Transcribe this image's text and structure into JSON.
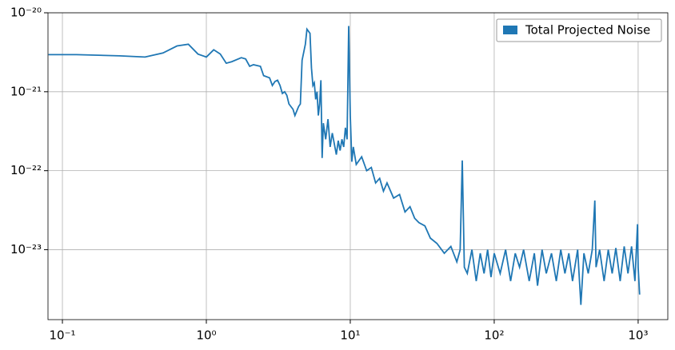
{
  "chart_data": {
    "type": "line",
    "x": [
      0.08,
      0.125,
      0.25,
      0.375,
      0.5,
      0.625,
      0.75,
      0.875,
      1.0,
      1.125,
      1.25,
      1.375,
      1.5,
      1.75,
      1.875,
      2.0,
      2.125,
      2.375,
      2.5,
      2.75,
      2.875,
      3.0,
      3.125,
      3.25,
      3.375,
      3.5,
      3.625,
      3.75,
      4.0,
      4.125,
      4.375,
      4.5,
      4.625,
      4.875,
      5.0,
      5.25,
      5.375,
      5.5,
      5.625,
      5.75,
      5.875,
      6.0,
      6.125,
      6.25,
      6.375,
      6.5,
      6.75,
      7.0,
      7.25,
      7.5,
      8.0,
      8.25,
      8.5,
      8.75,
      9.0,
      9.25,
      9.5,
      9.75,
      10.0,
      10.25,
      10.5,
      11,
      12,
      13,
      14,
      15,
      16,
      17,
      18,
      20,
      22,
      24,
      26,
      28,
      30,
      33,
      36,
      40,
      45,
      50,
      55,
      58,
      60,
      62,
      65,
      70,
      75,
      80,
      85,
      90,
      95,
      100,
      110,
      120,
      130,
      140,
      150,
      160,
      175,
      190,
      200,
      215,
      230,
      250,
      270,
      290,
      310,
      330,
      350,
      380,
      400,
      420,
      450,
      480,
      500,
      510,
      540,
      580,
      620,
      660,
      700,
      750,
      800,
      850,
      900,
      950,
      990,
      1000,
      1024
    ],
    "series": [
      {
        "name": "Total Projected Noise",
        "color": "#1f77b4",
        "values": [
          2.95e-21,
          2.95e-21,
          2.85e-21,
          2.75e-21,
          3.1e-21,
          3.8e-21,
          4e-21,
          3e-21,
          2.75e-21,
          3.4e-21,
          3e-21,
          2.3e-21,
          2.4e-21,
          2.7e-21,
          2.6e-21,
          2.1e-21,
          2.2e-21,
          2.1e-21,
          1.6e-21,
          1.5e-21,
          1.2e-21,
          1.35e-21,
          1.4e-21,
          1.2e-21,
          9.5e-22,
          1e-21,
          9e-22,
          7e-22,
          6e-22,
          5e-22,
          6.5e-22,
          7e-22,
          2.5e-21,
          4e-21,
          6.2e-21,
          5.5e-21,
          2e-21,
          1.2e-21,
          1.3e-21,
          8e-22,
          1e-21,
          5e-22,
          7e-22,
          1.4e-21,
          1.45e-22,
          4e-22,
          2.5e-22,
          4.5e-22,
          2e-22,
          3e-22,
          1.6e-22,
          2.4e-22,
          1.8e-22,
          2.5e-22,
          2e-22,
          3.5e-22,
          2.5e-22,
          6.8e-21,
          5e-22,
          1.3e-22,
          2e-22,
          1.2e-22,
          1.5e-22,
          1e-22,
          1.1e-22,
          7e-23,
          8e-23,
          5.5e-23,
          7e-23,
          4.5e-23,
          5e-23,
          3e-23,
          3.5e-23,
          2.5e-23,
          2.2e-23,
          2e-23,
          1.4e-23,
          1.2e-23,
          9e-24,
          1.1e-23,
          7e-24,
          1e-23,
          1.35e-22,
          6e-24,
          5e-24,
          1e-23,
          4e-24,
          9e-24,
          5e-24,
          1e-23,
          4.5e-24,
          9e-24,
          5e-24,
          1e-23,
          4e-24,
          9e-24,
          6e-24,
          1e-23,
          4e-24,
          9e-24,
          3.5e-24,
          1e-23,
          5e-24,
          9e-24,
          4e-24,
          1e-23,
          5e-24,
          9e-24,
          4e-24,
          1e-23,
          2e-24,
          9e-24,
          5e-24,
          1e-23,
          4.2e-23,
          6e-24,
          1e-23,
          4e-24,
          1e-23,
          5e-24,
          1.05e-23,
          4e-24,
          1.1e-23,
          5e-24,
          1.1e-23,
          4e-24,
          2.1e-23,
          6e-24,
          2.7e-24
        ]
      }
    ],
    "xlim": [
      0.0794,
      1607
    ],
    "ylim": [
      1.3e-24,
      1e-20
    ],
    "xticks": [
      {
        "value": 0.1,
        "label": "10⁻¹"
      },
      {
        "value": 1,
        "label": "10⁰"
      },
      {
        "value": 10,
        "label": "10¹"
      },
      {
        "value": 100,
        "label": "10²"
      },
      {
        "value": 1000,
        "label": "10³"
      }
    ],
    "yticks": [
      {
        "value": 1e-23,
        "label": "10⁻²³"
      },
      {
        "value": 1e-22,
        "label": "10⁻²²"
      },
      {
        "value": 1e-21,
        "label": "10⁻²¹"
      },
      {
        "value": 1e-20,
        "label": "10⁻²⁰"
      }
    ],
    "xscale": "log",
    "yscale": "log",
    "grid": true,
    "legend": "upper right"
  }
}
